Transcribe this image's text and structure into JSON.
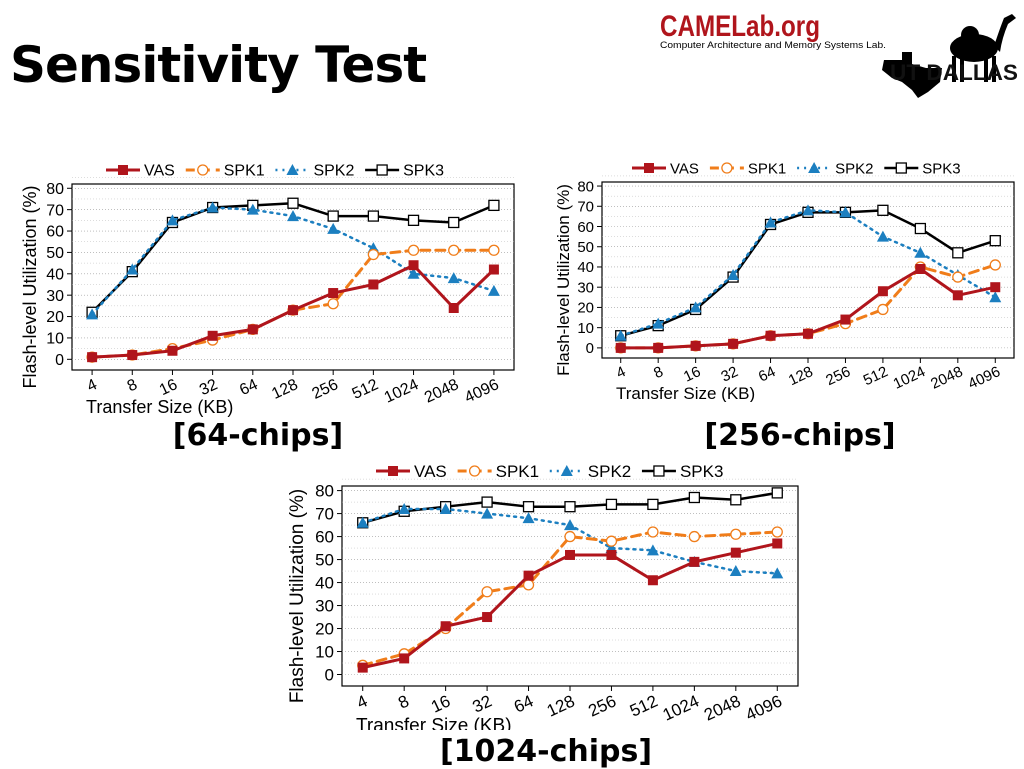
{
  "slide": {
    "title": "Sensitivity Test",
    "logo": {
      "org_name": "CAMELab.org",
      "org_subtitle": "Computer Architecture and Memory Systems Lab.",
      "university": "UT DALLAS"
    }
  },
  "colors": {
    "VAS": "#b0151c",
    "SPK1": "#f07d1a",
    "SPK2": "#1c7fc0",
    "SPK3": "#000000"
  },
  "chart_data": [
    {
      "type": "line",
      "caption": "[64-chips]",
      "xlabel": "Transfer Size (KB)",
      "ylabel": "Flash-level Utilization (%)",
      "categories": [
        "4",
        "8",
        "16",
        "32",
        "64",
        "128",
        "256",
        "512",
        "1024",
        "2048",
        "4096"
      ],
      "ylim": [
        -5,
        82
      ],
      "yticks": [
        0,
        10,
        20,
        30,
        40,
        50,
        60,
        70,
        80
      ],
      "legend_position": "top",
      "grid": true,
      "series": [
        {
          "name": "VAS",
          "values": [
            1,
            2,
            4,
            11,
            14,
            23,
            31,
            35,
            44,
            24,
            42
          ]
        },
        {
          "name": "SPK1",
          "values": [
            1,
            2,
            5,
            9,
            14,
            23,
            26,
            49,
            51,
            51,
            51
          ]
        },
        {
          "name": "SPK2",
          "values": [
            21,
            42,
            65,
            71,
            70,
            67,
            61,
            52,
            40,
            38,
            32
          ]
        },
        {
          "name": "SPK3",
          "values": [
            22,
            41,
            64,
            71,
            72,
            73,
            67,
            67,
            65,
            64,
            72
          ]
        }
      ]
    },
    {
      "type": "line",
      "caption": "[256-chips]",
      "xlabel": "Transfer Size (KB)",
      "ylabel": "Flash-level Utilization (%)",
      "categories": [
        "4",
        "8",
        "16",
        "32",
        "64",
        "128",
        "256",
        "512",
        "1024",
        "2048",
        "4096"
      ],
      "ylim": [
        -5,
        82
      ],
      "yticks": [
        0,
        10,
        20,
        30,
        40,
        50,
        60,
        70,
        80
      ],
      "legend_position": "top",
      "grid": true,
      "series": [
        {
          "name": "VAS",
          "values": [
            0,
            0,
            1,
            2,
            6,
            7,
            14,
            28,
            39,
            26,
            30
          ]
        },
        {
          "name": "SPK1",
          "values": [
            0,
            0,
            1,
            2,
            6,
            7,
            12,
            19,
            40,
            35,
            41
          ]
        },
        {
          "name": "SPK2",
          "values": [
            6,
            12,
            20,
            36,
            62,
            68,
            67,
            55,
            47,
            36,
            25
          ]
        },
        {
          "name": "SPK3",
          "values": [
            6,
            11,
            19,
            35,
            61,
            67,
            67,
            68,
            59,
            47,
            53
          ]
        }
      ]
    },
    {
      "type": "line",
      "caption": "[1024-chips]",
      "xlabel": "Transfer Size (KB)",
      "ylabel": "Flash-level Utilization (%)",
      "categories": [
        "4",
        "8",
        "16",
        "32",
        "64",
        "128",
        "256",
        "512",
        "1024",
        "2048",
        "4096"
      ],
      "ylim": [
        -5,
        82
      ],
      "yticks": [
        0,
        10,
        20,
        30,
        40,
        50,
        60,
        70,
        80
      ],
      "legend_position": "top",
      "grid": true,
      "series": [
        {
          "name": "VAS",
          "values": [
            3,
            7,
            21,
            25,
            43,
            52,
            52,
            41,
            49,
            53,
            57
          ]
        },
        {
          "name": "SPK1",
          "values": [
            4,
            9,
            20,
            36,
            39,
            60,
            58,
            62,
            60,
            61,
            62
          ]
        },
        {
          "name": "SPK2",
          "values": [
            66,
            72,
            72,
            70,
            68,
            65,
            55,
            54,
            49,
            45,
            44
          ]
        },
        {
          "name": "SPK3",
          "values": [
            66,
            71,
            73,
            75,
            73,
            73,
            74,
            74,
            77,
            76,
            79
          ]
        }
      ]
    }
  ]
}
